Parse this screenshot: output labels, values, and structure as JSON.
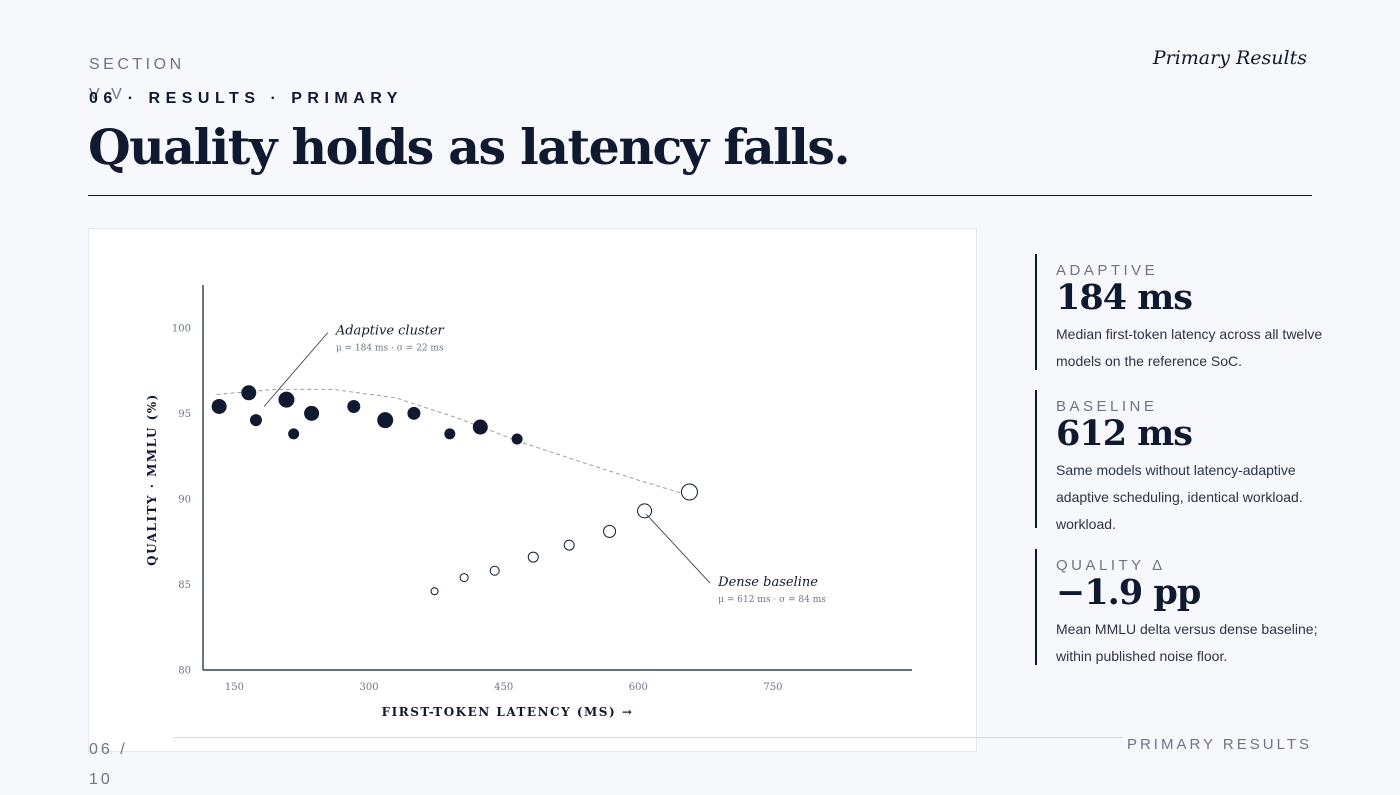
{
  "header": {
    "section": "SECTION V V",
    "running_title": "Primary Results",
    "kicker": "06 · RESULTS · PRIMARY",
    "title": "Quality holds as latency falls."
  },
  "stats": [
    {
      "label": "ADAPTIVE",
      "value": "184 ms",
      "description": "Median first-token latency across all twelve models on the reference SoC."
    },
    {
      "label": "BASELINE",
      "value": "612 ms",
      "description": "Same models without latency-adaptive adaptive scheduling, identical workload. workload."
    },
    {
      "label": "QUALITY Δ",
      "value": "−1.9 pp",
      "description": "Mean MMLU delta versus dense baseline; within published noise floor."
    }
  ],
  "footer": {
    "page": "06 / 10",
    "section": "PRIMARY RESULTS"
  },
  "chart_data": {
    "type": "scatter",
    "xlabel": "FIRST-TOKEN LATENCY (MS) →",
    "ylabel": "QUALITY · MMLU (%)",
    "xlim": [
      115,
      905
    ],
    "ylim": [
      80,
      102.5
    ],
    "xticks": [
      150,
      300,
      450,
      600,
      750
    ],
    "yticks": [
      80,
      85,
      90,
      95,
      100
    ],
    "grid": false,
    "colors": {
      "adaptive": "#0f1a30",
      "baseline": "#0f1a30",
      "trend": "#9aa0aa",
      "axis": "#0f1a30"
    },
    "series": [
      {
        "name": "Adaptive cluster",
        "marker": "filled",
        "x": [
          133,
          166,
          174,
          208,
          216,
          236,
          283,
          318,
          350,
          390,
          424,
          465
        ],
        "y": [
          95.4,
          96.2,
          94.6,
          95.8,
          93.8,
          95.0,
          95.4,
          94.6,
          95.0,
          93.8,
          94.2,
          93.5
        ],
        "size": [
          7.5,
          7.5,
          6,
          8,
          5.5,
          7.5,
          6.5,
          8,
          6.5,
          5.5,
          7.5,
          5.5
        ]
      },
      {
        "name": "Dense baseline",
        "marker": "open",
        "x": [
          373,
          406,
          440,
          483,
          523,
          568,
          607,
          657
        ],
        "y": [
          84.6,
          85.4,
          85.8,
          86.6,
          87.3,
          88.1,
          89.3,
          90.4
        ],
        "size": [
          3.5,
          4,
          4.5,
          5,
          5,
          6,
          7,
          8
        ]
      }
    ],
    "trend_line": {
      "style": "dashed",
      "x": [
        130,
        195,
        260,
        330,
        400,
        470,
        540,
        600,
        657
      ],
      "y": [
        96.1,
        96.4,
        96.4,
        95.9,
        94.7,
        93.3,
        92.1,
        91.1,
        90.2
      ]
    },
    "annotations": [
      {
        "text": "Adaptive cluster",
        "subtext": "μ = 184 ms · σ = 22 ms",
        "x": 263,
        "y": 99.6,
        "point": [
          183,
          95.4
        ]
      },
      {
        "text": "Dense baseline",
        "subtext": "μ = 612 ms · σ = 84 ms",
        "x": 689,
        "y": 84.9,
        "point": [
          609,
          89.1
        ]
      }
    ]
  }
}
